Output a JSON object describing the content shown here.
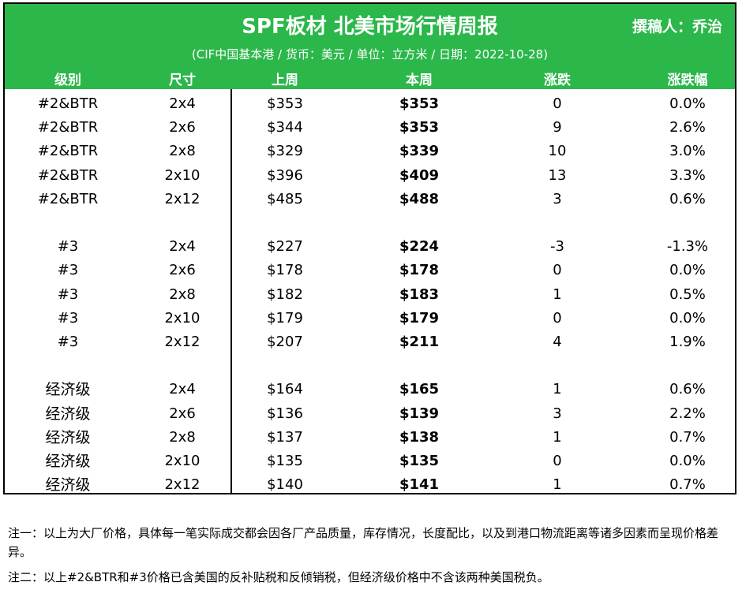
{
  "header": {
    "title": "SPF板材 北美市场行情周报",
    "author": "撰稿人：乔治",
    "subtitle": "(CIF中国基本港 / 货币：美元 / 单位：立方米 / 日期：2022-10-28)"
  },
  "columns": [
    "级别",
    "尺寸",
    "上周",
    "本周",
    "涨跌",
    "涨跌幅"
  ],
  "groups": [
    {
      "rows": [
        {
          "grade": "#2&BTR",
          "size": "2x4",
          "last": "$353",
          "this": "$353",
          "change": "0",
          "pct": "0.0%"
        },
        {
          "grade": "#2&BTR",
          "size": "2x6",
          "last": "$344",
          "this": "$353",
          "change": "9",
          "pct": "2.6%"
        },
        {
          "grade": "#2&BTR",
          "size": "2x8",
          "last": "$329",
          "this": "$339",
          "change": "10",
          "pct": "3.0%"
        },
        {
          "grade": "#2&BTR",
          "size": "2x10",
          "last": "$396",
          "this": "$409",
          "change": "13",
          "pct": "3.3%"
        },
        {
          "grade": "#2&BTR",
          "size": "2x12",
          "last": "$485",
          "this": "$488",
          "change": "3",
          "pct": "0.6%"
        }
      ]
    },
    {
      "rows": [
        {
          "grade": "#3",
          "size": "2x4",
          "last": "$227",
          "this": "$224",
          "change": "-3",
          "pct": "-1.3%"
        },
        {
          "grade": "#3",
          "size": "2x6",
          "last": "$178",
          "this": "$178",
          "change": "0",
          "pct": "0.0%"
        },
        {
          "grade": "#3",
          "size": "2x8",
          "last": "$182",
          "this": "$183",
          "change": "1",
          "pct": "0.5%"
        },
        {
          "grade": "#3",
          "size": "2x10",
          "last": "$179",
          "this": "$179",
          "change": "0",
          "pct": "0.0%"
        },
        {
          "grade": "#3",
          "size": "2x12",
          "last": "$207",
          "this": "$211",
          "change": "4",
          "pct": "1.9%"
        }
      ]
    },
    {
      "rows": [
        {
          "grade": "经济级",
          "size": "2x4",
          "last": "$164",
          "this": "$165",
          "change": "1",
          "pct": "0.6%"
        },
        {
          "grade": "经济级",
          "size": "2x6",
          "last": "$136",
          "this": "$139",
          "change": "3",
          "pct": "2.2%"
        },
        {
          "grade": "经济级",
          "size": "2x8",
          "last": "$137",
          "this": "$138",
          "change": "1",
          "pct": "0.7%"
        },
        {
          "grade": "经济级",
          "size": "2x10",
          "last": "$135",
          "this": "$135",
          "change": "0",
          "pct": "0.0%"
        },
        {
          "grade": "经济级",
          "size": "2x12",
          "last": "$140",
          "this": "$141",
          "change": "1",
          "pct": "0.7%"
        }
      ]
    }
  ],
  "notes": [
    "注一：以上为大厂价格，具体每一笔实际成交都会因各厂产品质量，库存情况，长度配比，以及到港口物流距离等诸多因素而呈现价格差异。",
    "注二：以上#2&BTR和#3价格已含美国的反补贴税和反倾销税，但经济级价格中不含该两种美国税负。"
  ],
  "colors": {
    "header_bg": "#2bb74a",
    "header_text": "#ffffff",
    "border": "#000000"
  }
}
